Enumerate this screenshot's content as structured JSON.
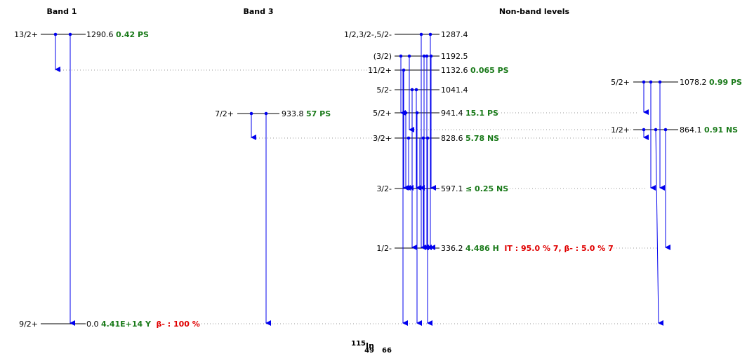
{
  "headers": {
    "band1": "Band 1",
    "band3": "Band 3",
    "nonband": "Non-band levels"
  },
  "nucleus": {
    "mass": "115",
    "z": "49",
    "symbol": "In",
    "n": "66"
  },
  "colors": {
    "level": "#000000",
    "gamma": "#0000ee",
    "halflife": "#1a7a1a",
    "decay": "#e00000",
    "connector": "#999999"
  },
  "levels": [
    {
      "id": "b1_1290",
      "spin": "13/2+",
      "energy": "1290.6",
      "halflife": "0.42 PS",
      "decay": ""
    },
    {
      "id": "b1_0",
      "spin": "9/2+",
      "energy": "0.0",
      "halflife": "4.41E+14 Y",
      "decay": "β- : 100 %"
    },
    {
      "id": "b3_933",
      "spin": "7/2+",
      "energy": "933.8",
      "halflife": "57 PS",
      "decay": ""
    },
    {
      "id": "nb_1287",
      "spin": "1/2,3/2-,5/2-",
      "energy": "1287.4",
      "halflife": "",
      "decay": ""
    },
    {
      "id": "nb_1192",
      "spin": "(3/2)",
      "energy": "1192.5",
      "halflife": "",
      "decay": ""
    },
    {
      "id": "nb_1132",
      "spin": "11/2+",
      "energy": "1132.6",
      "halflife": "0.065 PS",
      "decay": ""
    },
    {
      "id": "nb_1041",
      "spin": "5/2-",
      "energy": "1041.4",
      "halflife": "",
      "decay": ""
    },
    {
      "id": "nb_941",
      "spin": "5/2+",
      "energy": "941.4",
      "halflife": "15.1 PS",
      "decay": ""
    },
    {
      "id": "nb_828",
      "spin": "3/2+",
      "energy": "828.6",
      "halflife": "5.78 NS",
      "decay": ""
    },
    {
      "id": "nb_597",
      "spin": "3/2-",
      "energy": "597.1",
      "halflife": "≤ 0.25 NS",
      "decay": ""
    },
    {
      "id": "nb_336",
      "spin": "1/2-",
      "energy": "336.2",
      "halflife": "4.486 H",
      "decay": "IT : 95.0 % 7, β- : 5.0 % 7"
    },
    {
      "id": "r_1078",
      "spin": "5/2+",
      "energy": "1078.2",
      "halflife": "0.99 PS",
      "decay": ""
    },
    {
      "id": "r_864",
      "spin": "1/2+",
      "energy": "864.1",
      "halflife": "0.91 NS",
      "decay": ""
    }
  ],
  "transitions": [
    {
      "from": "1290.6",
      "to": "1132.6"
    },
    {
      "from": "1290.6",
      "to": "0.0"
    },
    {
      "from": "933.8",
      "to": "828.6"
    },
    {
      "from": "933.8",
      "to": "0.0"
    },
    {
      "from": "1287.4",
      "to": "336.2"
    },
    {
      "from": "1287.4",
      "to": "336.2"
    },
    {
      "from": "1192.5",
      "to": "597.1"
    },
    {
      "from": "1192.5",
      "to": "597.1"
    },
    {
      "from": "1192.5",
      "to": "336.2"
    },
    {
      "from": "1192.5",
      "to": "336.2"
    },
    {
      "from": "1192.5",
      "to": "336.2"
    },
    {
      "from": "1132.6",
      "to": "941.4"
    },
    {
      "from": "1132.6",
      "to": "0.0"
    },
    {
      "from": "1041.4",
      "to": "597.1"
    },
    {
      "from": "1041.4",
      "to": "336.2"
    },
    {
      "from": "941.4",
      "to": "864.1"
    },
    {
      "from": "941.4",
      "to": "597.1"
    },
    {
      "from": "828.6",
      "to": "336.2"
    },
    {
      "from": "828.6",
      "to": "0.0"
    },
    {
      "from": "1078.2",
      "to": "941.4"
    },
    {
      "from": "1078.2",
      "to": "597.1"
    },
    {
      "from": "1078.2",
      "to": "597.1"
    },
    {
      "from": "864.1",
      "to": "828.6"
    },
    {
      "from": "864.1",
      "to": "336.2"
    },
    {
      "from": "864.1",
      "to": "0.0"
    }
  ]
}
